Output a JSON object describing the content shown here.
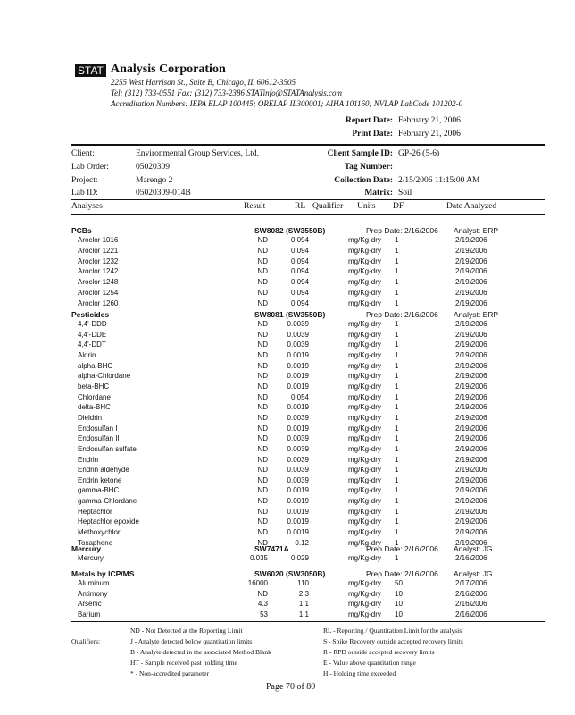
{
  "letterhead": {
    "logo": "STAT",
    "company": "Analysis Corporation",
    "address": "2255 West Harrison St., Suite B, Chicago, IL 60612-3505",
    "contact": "Tel: (312) 733-0551  Fax: (312) 733-2386  STATinfo@STATAnalysis.com",
    "accreditation": "Accreditation Numbers: IEPA ELAP 100445; ORELAP IL300001; AIHA 101160; NVLAP LabCode 101202-0"
  },
  "dates": {
    "report_label": "Report Date:",
    "report_value": "February 21, 2006",
    "print_label": "Print Date:",
    "print_value": "February 21, 2006"
  },
  "info": {
    "client_label": "Client:",
    "client": "Environmental Group Services, Ltd.",
    "lab_order_label": "Lab Order:",
    "lab_order": "05020309",
    "project_label": "Project:",
    "project": "Marengo 2",
    "lab_id_label": "Lab ID:",
    "lab_id": "05020309-014B",
    "sample_id_label": "Client Sample ID:",
    "sample_id": "GP-26 (5-6)",
    "tag_label": "Tag Number:",
    "collection_label": "Collection Date:",
    "collection": "2/15/2006 11:15:00 AM",
    "matrix_label": "Matrix:",
    "matrix": "Soil"
  },
  "columns": {
    "analyses": "Analyses",
    "result": "Result",
    "rl": "RL",
    "qualifier": "Qualifier",
    "units": "Units",
    "df": "DF",
    "date": "Date Analyzed"
  },
  "sections": [
    {
      "name": "PCBs",
      "method": "SW8082  (SW3550B)",
      "prep": "Prep Date: 2/16/2006",
      "analyst": "Analyst: ERP",
      "rows": [
        [
          "Aroclor 1016",
          "ND",
          "0.094",
          "mg/Kg-dry",
          "1",
          "2/19/2006"
        ],
        [
          "Aroclor 1221",
          "ND",
          "0.094",
          "mg/Kg-dry",
          "1",
          "2/19/2006"
        ],
        [
          "Aroclor 1232",
          "ND",
          "0.094",
          "mg/Kg-dry",
          "1",
          "2/19/2006"
        ],
        [
          "Aroclor 1242",
          "ND",
          "0.094",
          "mg/Kg-dry",
          "1",
          "2/19/2006"
        ],
        [
          "Aroclor 1248",
          "ND",
          "0.094",
          "mg/Kg-dry",
          "1",
          "2/19/2006"
        ],
        [
          "Aroclor 1254",
          "ND",
          "0.094",
          "mg/Kg-dry",
          "1",
          "2/19/2006"
        ],
        [
          "Aroclor 1260",
          "ND",
          "0.094",
          "mg/Kg-dry",
          "1",
          "2/19/2006"
        ]
      ]
    },
    {
      "name": "Pesticides",
      "method": "SW8081  (SW3550B)",
      "prep": "Prep Date: 2/16/2006",
      "analyst": "Analyst: ERP",
      "rows": [
        [
          "4,4'-DDD",
          "ND",
          "0.0039",
          "mg/Kg-dry",
          "1",
          "2/19/2006"
        ],
        [
          "4,4'-DDE",
          "ND",
          "0.0039",
          "mg/Kg-dry",
          "1",
          "2/19/2006"
        ],
        [
          "4,4'-DDT",
          "ND",
          "0.0039",
          "mg/Kg-dry",
          "1",
          "2/19/2006"
        ],
        [
          "Aldrin",
          "ND",
          "0.0019",
          "mg/Kg-dry",
          "1",
          "2/19/2006"
        ],
        [
          "alpha-BHC",
          "ND",
          "0.0019",
          "mg/Kg-dry",
          "1",
          "2/19/2006"
        ],
        [
          "alpha-Chlordane",
          "ND",
          "0.0019",
          "mg/Kg-dry",
          "1",
          "2/19/2006"
        ],
        [
          "beta-BHC",
          "ND",
          "0.0019",
          "mg/Kg-dry",
          "1",
          "2/19/2006"
        ],
        [
          "Chlordane",
          "ND",
          "0.054",
          "mg/Kg-dry",
          "1",
          "2/19/2006"
        ],
        [
          "delta-BHC",
          "ND",
          "0.0019",
          "mg/Kg-dry",
          "1",
          "2/19/2006"
        ],
        [
          "Dieldrin",
          "ND",
          "0.0039",
          "mg/Kg-dry",
          "1",
          "2/19/2006"
        ],
        [
          "Endosulfan I",
          "ND",
          "0.0019",
          "mg/Kg-dry",
          "1",
          "2/19/2006"
        ],
        [
          "Endosulfan II",
          "ND",
          "0.0039",
          "mg/Kg-dry",
          "1",
          "2/19/2006"
        ],
        [
          "Endosulfan sulfate",
          "ND",
          "0.0039",
          "mg/Kg-dry",
          "1",
          "2/19/2006"
        ],
        [
          "Endrin",
          "ND",
          "0.0039",
          "mg/Kg-dry",
          "1",
          "2/19/2006"
        ],
        [
          "Endrin aldehyde",
          "ND",
          "0.0039",
          "mg/Kg-dry",
          "1",
          "2/19/2006"
        ],
        [
          "Endrin ketone",
          "ND",
          "0.0039",
          "mg/Kg-dry",
          "1",
          "2/19/2006"
        ],
        [
          "gamma-BHC",
          "ND",
          "0.0019",
          "mg/Kg-dry",
          "1",
          "2/19/2006"
        ],
        [
          "gamma-Chlordane",
          "ND",
          "0.0019",
          "mg/Kg-dry",
          "1",
          "2/19/2006"
        ],
        [
          "Heptachlor",
          "ND",
          "0.0019",
          "mg/Kg-dry",
          "1",
          "2/19/2006"
        ],
        [
          "Heptachlor epoxide",
          "ND",
          "0.0019",
          "mg/Kg-dry",
          "1",
          "2/19/2006"
        ],
        [
          "Methoxychlor",
          "ND",
          "0.0019",
          "mg/Kg-dry",
          "1",
          "2/19/2006"
        ],
        [
          "Toxaphene",
          "ND",
          "0.12",
          "mg/Kg-dry",
          "1",
          "2/19/2006"
        ]
      ]
    },
    {
      "name": "Mercury",
      "method": "SW7471A",
      "prep": "Prep Date: 2/16/2006",
      "analyst": "Analyst: JG",
      "rows": [
        [
          "Mercury",
          "0.035",
          "0.029",
          "mg/Kg-dry",
          "1",
          "2/16/2006"
        ]
      ]
    },
    {
      "name": "Metals by ICP/MS",
      "method": "SW6020  (SW3050B)",
      "prep": "Prep Date: 2/16/2006",
      "analyst": "Analyst: JG",
      "rows": [
        [
          "Aluminum",
          "16000",
          "110",
          "mg/Kg-dry",
          "50",
          "2/17/2006"
        ],
        [
          "Antimony",
          "ND",
          "2.3",
          "mg/Kg-dry",
          "10",
          "2/16/2006"
        ],
        [
          "Arsenic",
          "4.3",
          "1.1",
          "mg/Kg-dry",
          "10",
          "2/16/2006"
        ],
        [
          "Barium",
          "53",
          "1.1",
          "mg/Kg-dry",
          "10",
          "2/16/2006"
        ]
      ]
    }
  ],
  "qualifiers": {
    "label": "Qualifiers:",
    "left": [
      "ND - Not Detected at the Reporting Limit",
      "J - Analyte detected below quantitation limits",
      "B - Analyte detected in the associated Method Blank",
      "HT - Sample received past holding time",
      "* - Non-accredited parameter"
    ],
    "right": [
      "RL - Reporting / Quantitation Limit for the analysis",
      "S - Spike Recovery outside accepted recovery limits",
      "R - RPD outside accepted recovery limits",
      "E - Value above quantitation range",
      "H - Holding time exceeded"
    ]
  },
  "footer": {
    "page": "Page 70 of 80"
  }
}
